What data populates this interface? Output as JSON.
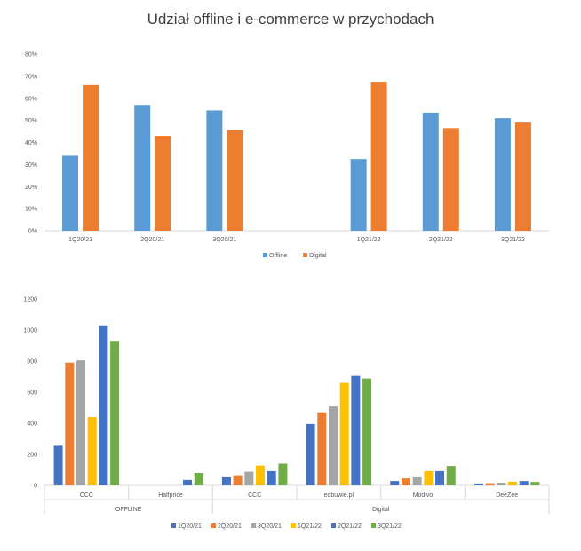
{
  "title": "Udział offline i e-commerce w przychodach",
  "chart_data": [
    {
      "type": "bar",
      "categories": [
        "1Q20/21",
        "2Q20/21",
        "3Q20/21",
        "",
        "1Q21/22",
        "2Q21/22",
        "3Q21/22"
      ],
      "series": [
        {
          "name": "Offline",
          "color": "#5B9BD5",
          "values": [
            0.34,
            0.57,
            0.545,
            null,
            0.325,
            0.535,
            0.51
          ]
        },
        {
          "name": "Digital",
          "color": "#ED7D31",
          "values": [
            0.66,
            0.43,
            0.455,
            null,
            0.675,
            0.465,
            0.49
          ]
        }
      ],
      "ylim": [
        0,
        0.8
      ],
      "yticks": [
        "0%",
        "10%",
        "20%",
        "30%",
        "40%",
        "50%",
        "60%",
        "70%",
        "80%"
      ],
      "legend": "bottom",
      "grid": false
    },
    {
      "type": "bar",
      "categories": [
        "CCC",
        "Halfprice",
        "CCC",
        "eobuwie.pl",
        "Modivo",
        "DeeZee"
      ],
      "groups": [
        {
          "label": "OFFLINE",
          "span": 2
        },
        {
          "label": "Digital",
          "span": 4
        }
      ],
      "series": [
        {
          "name": "1Q20/21",
          "color": "#4472C4",
          "values": [
            255,
            0,
            52,
            395,
            28,
            12
          ]
        },
        {
          "name": "2Q20/21",
          "color": "#ED7D31",
          "values": [
            790,
            0,
            65,
            470,
            45,
            14
          ]
        },
        {
          "name": "3Q20/21",
          "color": "#A5A5A5",
          "values": [
            805,
            0,
            88,
            508,
            52,
            17
          ]
        },
        {
          "name": "1Q21/22",
          "color": "#FFC000",
          "values": [
            440,
            0,
            128,
            660,
            92,
            23
          ]
        },
        {
          "name": "2Q21/22",
          "color": "#4472C4",
          "values": [
            1030,
            35,
            92,
            705,
            92,
            28
          ]
        },
        {
          "name": "3Q21/22",
          "color": "#70AD47",
          "values": [
            930,
            80,
            140,
            688,
            125,
            22
          ]
        }
      ],
      "ylim": [
        0,
        1200
      ],
      "yticks": [
        "0",
        "200",
        "400",
        "600",
        "800",
        "1000",
        "1200"
      ],
      "legend": "bottom",
      "grid": false
    }
  ]
}
